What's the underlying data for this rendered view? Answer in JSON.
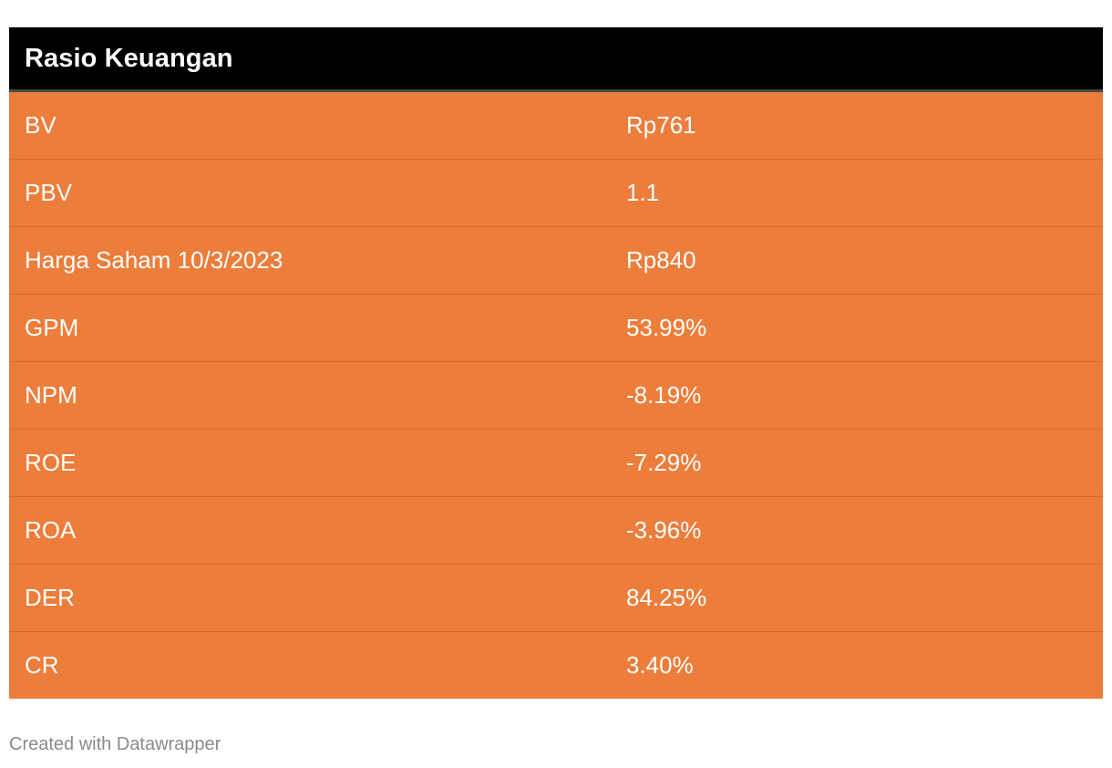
{
  "chart_data": {
    "type": "table",
    "title": "Rasio Keuangan",
    "rows": [
      {
        "label": "BV",
        "value": "Rp761"
      },
      {
        "label": "PBV",
        "value": "1.1"
      },
      {
        "label": "Harga Saham 10/3/2023",
        "value": "Rp840"
      },
      {
        "label": "GPM",
        "value": "53.99%"
      },
      {
        "label": "NPM",
        "value": "-8.19%"
      },
      {
        "label": "ROE",
        "value": "-7.29%"
      },
      {
        "label": "ROA",
        "value": "-3.96%"
      },
      {
        "label": "DER",
        "value": "84.25%"
      },
      {
        "label": "CR",
        "value": "3.40%"
      }
    ],
    "colors": {
      "header_bg": "#000000",
      "row_bg": "#ed7d3a",
      "text": "#ffffff"
    }
  },
  "footer": {
    "credit": "Created with Datawrapper"
  }
}
